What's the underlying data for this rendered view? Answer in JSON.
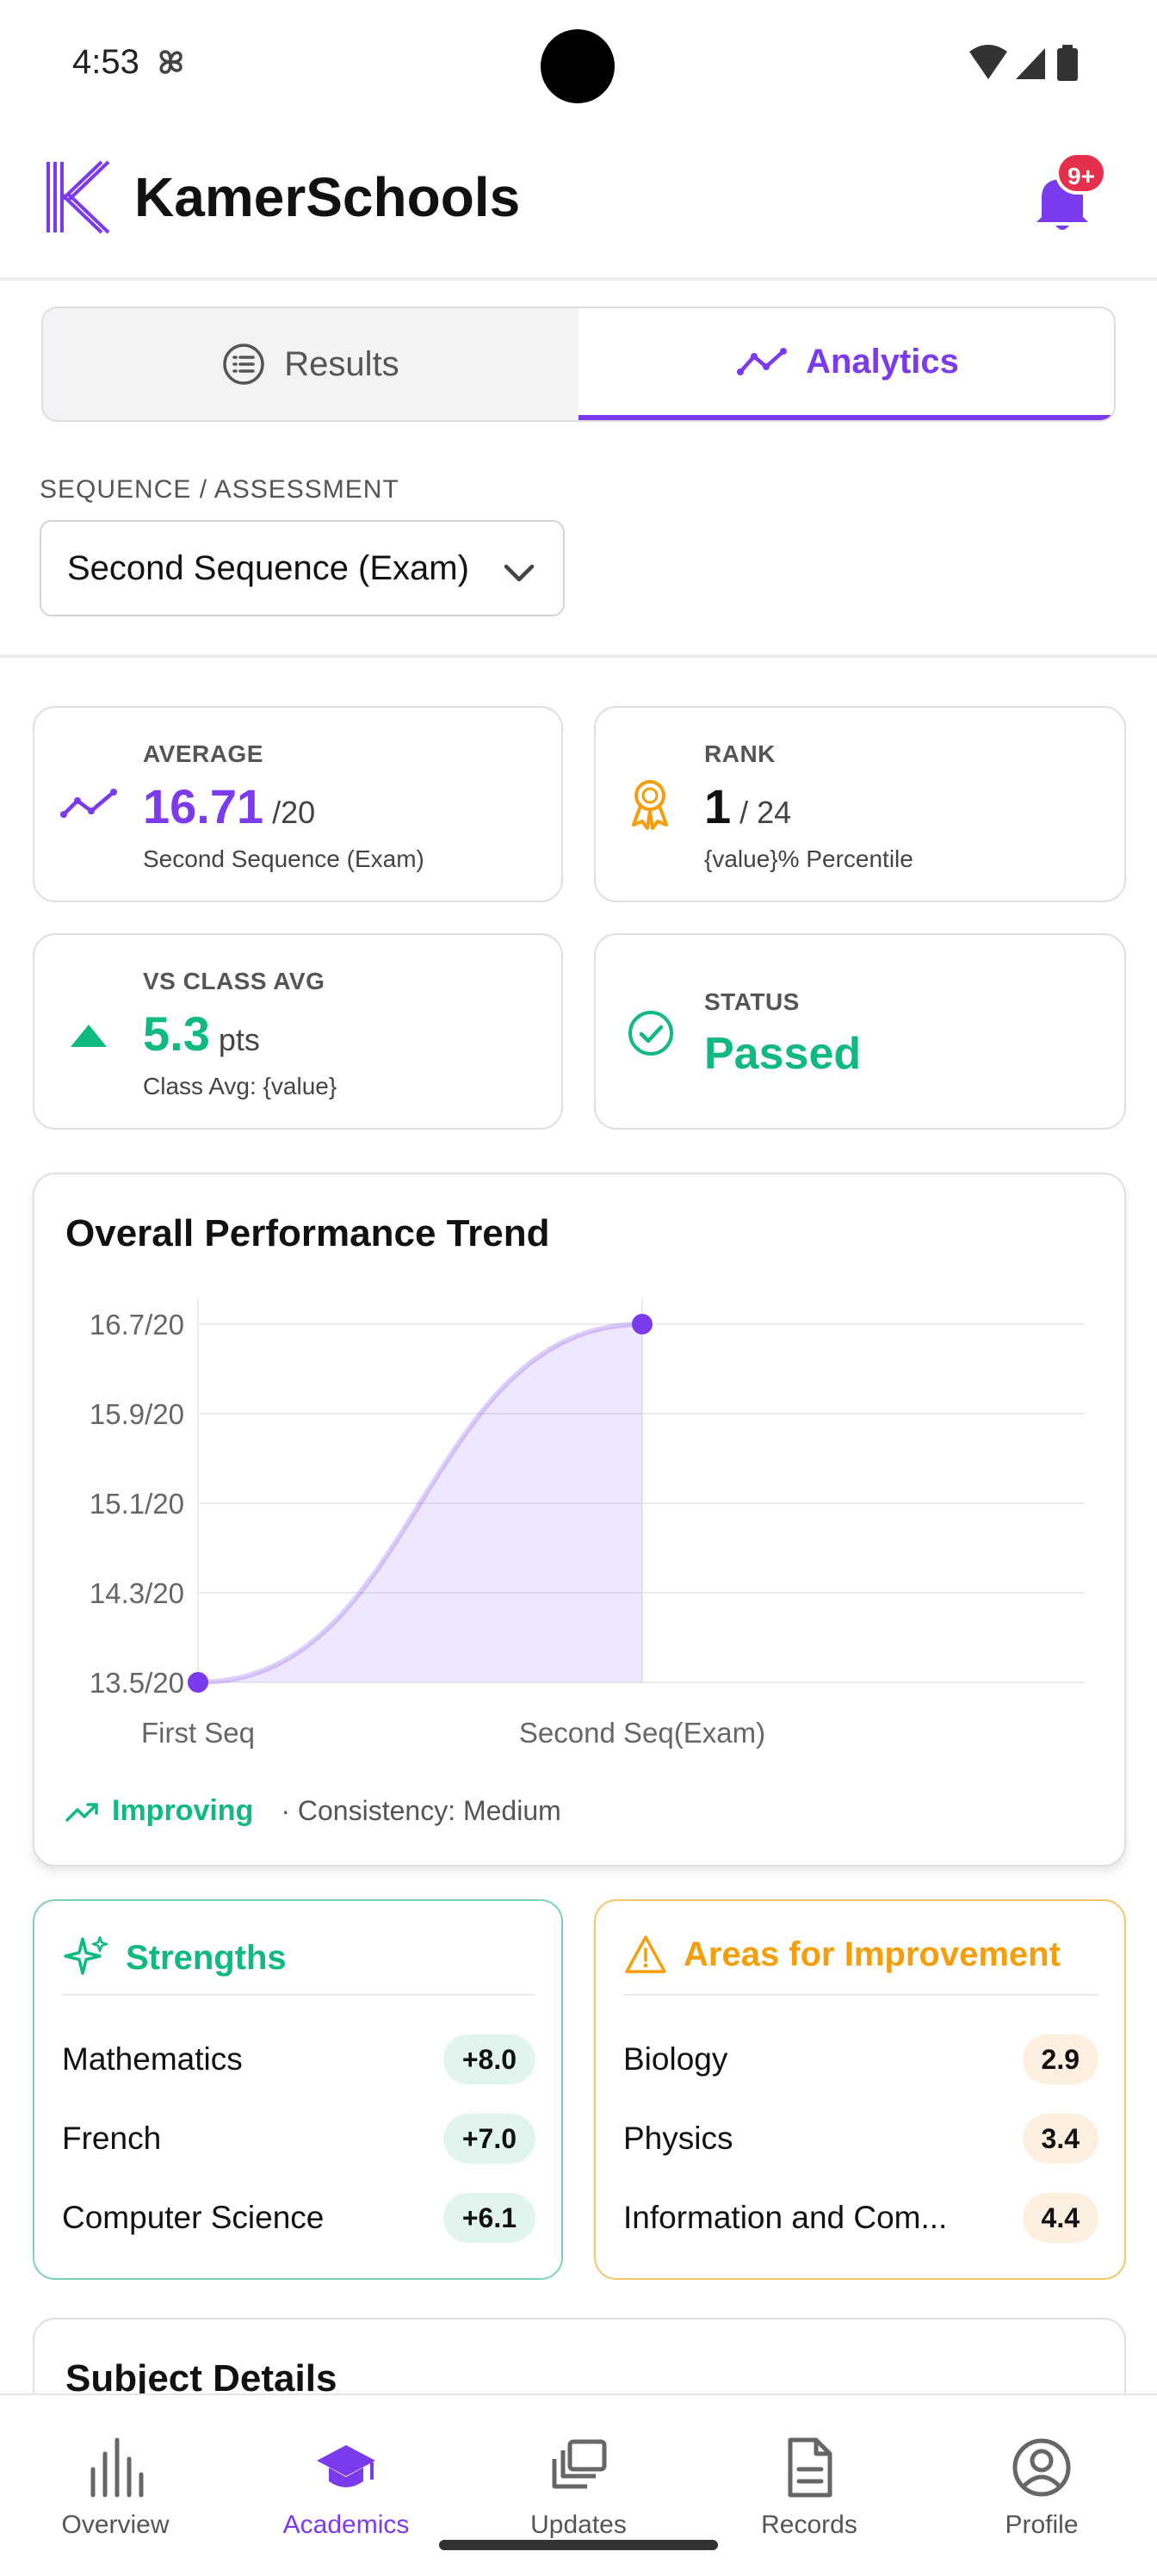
{
  "status_bar": {
    "time": "4:53"
  },
  "header": {
    "title": "KamerSchools",
    "notification_count": "9+"
  },
  "tabs": [
    {
      "label": "Results",
      "icon": "list-icon",
      "active": false
    },
    {
      "label": "Analytics",
      "icon": "trend-icon",
      "active": true
    }
  ],
  "sequence": {
    "label": "SEQUENCE / ASSESSMENT",
    "selected": "Second Sequence (Exam)"
  },
  "stats": {
    "average": {
      "label": "AVERAGE",
      "value": "16.71",
      "unit": "/20",
      "sub": "Second Sequence (Exam)"
    },
    "rank": {
      "label": "RANK",
      "value": "1",
      "unit": "/ 24",
      "sub": "{value}% Percentile"
    },
    "vs_class": {
      "label": "VS CLASS AVG",
      "value": "5.3",
      "unit": "pts",
      "sub": "Class Avg: {value}"
    },
    "status": {
      "label": "STATUS",
      "value": "Passed"
    }
  },
  "trend": {
    "title": "Overall Performance Trend",
    "improving_label": "Improving",
    "consistency_label": "· Consistency: Medium"
  },
  "chart_data": {
    "type": "area",
    "title": "Overall Performance Trend",
    "categories": [
      "First Seq",
      "Second Seq(Exam)"
    ],
    "values": [
      13.5,
      16.7
    ],
    "y_ticks": [
      "16.7/20",
      "15.9/20",
      "15.1/20",
      "14.3/20",
      "13.5/20"
    ],
    "y_tick_values": [
      16.7,
      15.9,
      15.1,
      14.3,
      13.5
    ],
    "ylim": [
      13.5,
      16.7
    ],
    "grid": true,
    "color": "#7c3aed"
  },
  "strengths": {
    "title": "Strengths",
    "items": [
      {
        "name": "Mathematics",
        "value": "+8.0"
      },
      {
        "name": "French",
        "value": "+7.0"
      },
      {
        "name": "Computer Science",
        "value": "+6.1"
      }
    ]
  },
  "improvements": {
    "title": "Areas for Improvement",
    "items": [
      {
        "name": "Biology",
        "value": "2.9"
      },
      {
        "name": "Physics",
        "value": "3.4"
      },
      {
        "name": "Information and Com...",
        "value": "4.4"
      }
    ]
  },
  "subject_details": {
    "title": "Subject Details"
  },
  "bottom_nav": [
    {
      "label": "Overview",
      "icon": "bar-chart-icon",
      "active": false
    },
    {
      "label": "Academics",
      "icon": "graduation-cap-icon",
      "active": true
    },
    {
      "label": "Updates",
      "icon": "stacked-images-icon",
      "active": false
    },
    {
      "label": "Records",
      "icon": "document-icon",
      "active": false
    },
    {
      "label": "Profile",
      "icon": "user-circle-icon",
      "active": false
    }
  ],
  "colors": {
    "accent": "#7c3aed",
    "success": "#10b981",
    "warning": "#f59e0b",
    "badge": "#e5304b"
  }
}
